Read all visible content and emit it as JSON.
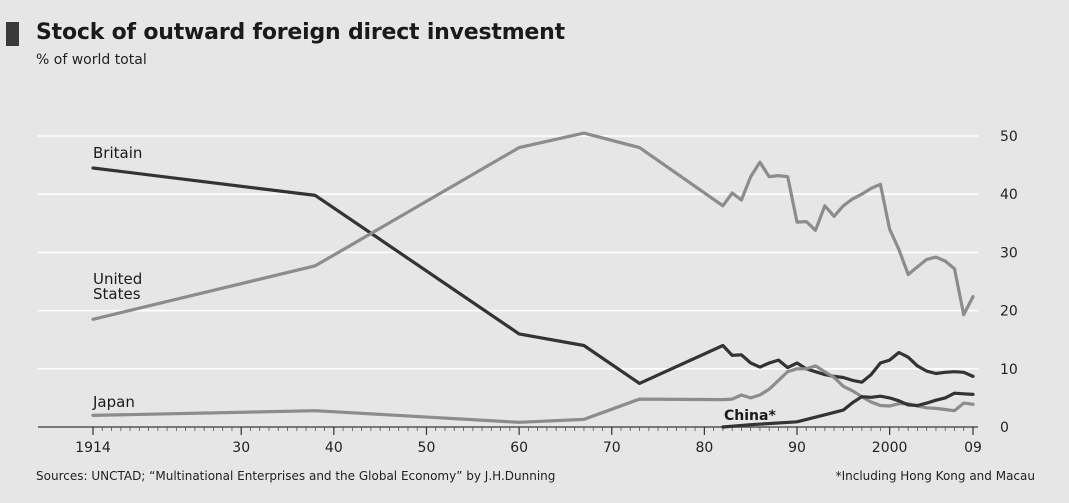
{
  "chart_data": {
    "type": "line",
    "title": "Stock of outward foreign direct investment",
    "subtitle": "% of world total",
    "x_tick_labels": [
      "1914",
      "30",
      "40",
      "50",
      "60",
      "70",
      "80",
      "90",
      "2000",
      "09"
    ],
    "x_tick_values": [
      1914,
      1930,
      1940,
      1950,
      1960,
      1970,
      1980,
      1990,
      2000,
      2009
    ],
    "xlim": [
      1914,
      2009
    ],
    "ylim": [
      0,
      50
    ],
    "y_ticks": [
      0,
      10,
      20,
      30,
      40,
      50
    ],
    "y_axis_side": "right",
    "grid": true,
    "colors": {
      "dark": "#333333",
      "light": "#8c8c8c",
      "grid": "#ffffff",
      "background": "#e6e6e6"
    },
    "series": [
      {
        "name": "Britain",
        "label_lines": [
          "Britain"
        ],
        "color": "#333333",
        "x": [
          1914,
          1938,
          1960,
          1967,
          1973,
          1982,
          1983,
          1984,
          1985,
          1986,
          1987,
          1988,
          1989,
          1990,
          1991,
          1992,
          1993,
          1994,
          1995,
          1996,
          1997,
          1998,
          1999,
          2000,
          2001,
          2002,
          2003,
          2004,
          2005,
          2006,
          2007,
          2008,
          2009
        ],
        "y": [
          44.5,
          39.8,
          16.0,
          14.0,
          7.5,
          14.0,
          12.3,
          12.4,
          11.0,
          10.3,
          11.0,
          11.5,
          10.2,
          11.0,
          10.0,
          9.5,
          9.0,
          8.7,
          8.5,
          8.0,
          7.7,
          9.0,
          11.0,
          11.5,
          12.8,
          12.0,
          10.5,
          9.6,
          9.2,
          9.4,
          9.5,
          9.4,
          8.7
        ]
      },
      {
        "name": "United States",
        "label_lines": [
          "United",
          "States"
        ],
        "color": "#8c8c8c",
        "x": [
          1914,
          1938,
          1960,
          1967,
          1973,
          1982,
          1983,
          1984,
          1985,
          1986,
          1987,
          1988,
          1989,
          1990,
          1991,
          1992,
          1993,
          1994,
          1995,
          1996,
          1997,
          1998,
          1999,
          2000,
          2001,
          2002,
          2003,
          2004,
          2005,
          2006,
          2007,
          2008,
          2009
        ],
        "y": [
          18.5,
          27.7,
          48.0,
          50.5,
          48.0,
          38.0,
          40.2,
          39.0,
          43.0,
          45.5,
          43.0,
          43.2,
          43.0,
          35.2,
          35.3,
          33.8,
          38.0,
          36.2,
          38.0,
          39.2,
          40.0,
          41.0,
          41.7,
          34.0,
          30.5,
          26.2,
          27.5,
          28.8,
          29.2,
          28.5,
          27.2,
          19.3,
          22.4
        ]
      },
      {
        "name": "Japan",
        "label_lines": [
          "Japan"
        ],
        "color": "#8c8c8c",
        "x": [
          1914,
          1938,
          1960,
          1967,
          1973,
          1982,
          1983,
          1984,
          1985,
          1986,
          1987,
          1988,
          1989,
          1990,
          1991,
          1992,
          1993,
          1994,
          1995,
          1996,
          1997,
          1998,
          1999,
          2000,
          2001,
          2002,
          2003,
          2004,
          2005,
          2006,
          2007,
          2008,
          2009
        ],
        "y": [
          2.0,
          2.8,
          0.8,
          1.3,
          4.8,
          4.7,
          4.8,
          5.5,
          5.0,
          5.5,
          6.5,
          8.0,
          9.5,
          10.0,
          10.0,
          10.5,
          9.5,
          8.5,
          7.0,
          6.2,
          5.2,
          4.3,
          3.7,
          3.6,
          4.0,
          4.0,
          3.6,
          3.3,
          3.2,
          3.0,
          2.8,
          4.1,
          3.9
        ]
      },
      {
        "name": "China*",
        "label_lines": [
          "China*"
        ],
        "color": "#333333",
        "x": [
          1982,
          1985,
          1990,
          1993,
          1995,
          1996,
          1997,
          1998,
          1999,
          2000,
          2001,
          2002,
          2003,
          2004,
          2005,
          2006,
          2007,
          2008,
          2009
        ],
        "y": [
          0.0,
          0.4,
          0.9,
          2.1,
          2.9,
          4.2,
          5.2,
          5.1,
          5.3,
          5.0,
          4.5,
          3.8,
          3.7,
          4.1,
          4.6,
          5.0,
          5.8,
          5.7,
          5.6
        ]
      }
    ],
    "footnote": "*Including Hong Kong and Macau"
  },
  "footer": {
    "sources": "Sources: UNCTAD; “Multinational Enterprises and the Global Economy” by J.H.Dunning",
    "note": "*Including Hong Kong and Macau"
  }
}
